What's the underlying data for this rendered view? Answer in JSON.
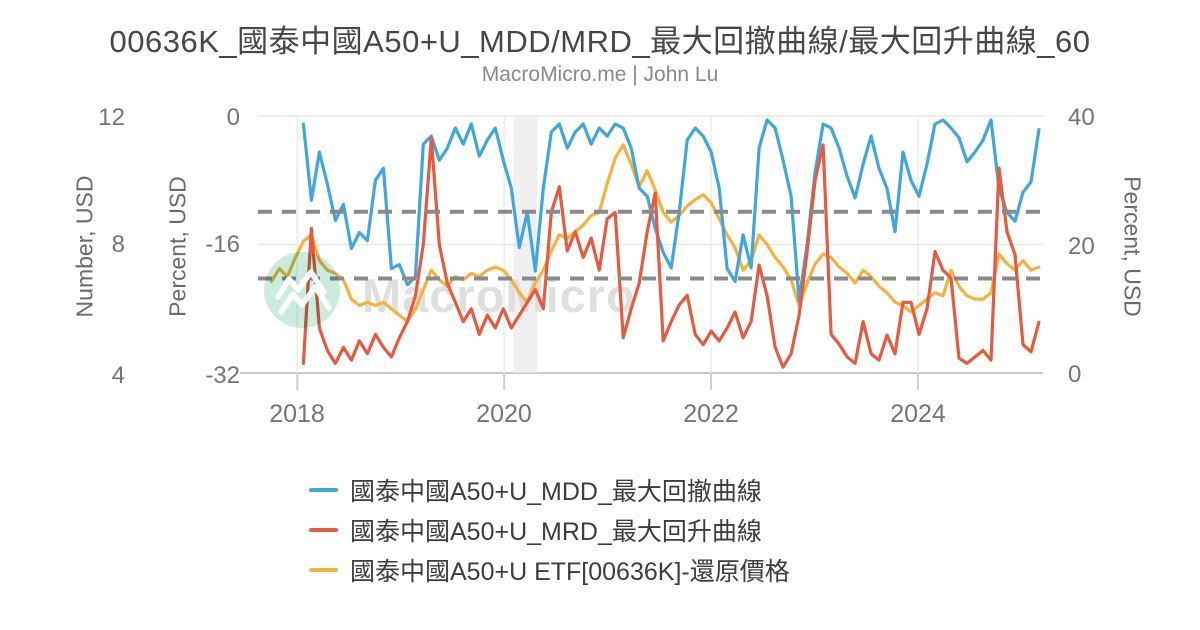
{
  "title": "00636K_國泰中國A50+U_MDD/MRD_最大回撤曲線/最大回升曲線_60",
  "subtitle": "MacroMicro.me | John Lu",
  "watermark": {
    "text": "MacroMicro",
    "logo": "macromicro-mountain-logo",
    "circle_color": "#c9ecdf",
    "text_color": "#d8d8d8"
  },
  "colors": {
    "blue": "#3fa7da",
    "red": "#e65a40",
    "yellow": "#f3b33e",
    "grid": "#e8e8e8",
    "axis_line": "#c9c9c9",
    "dash": "#8a8a8a",
    "band": "#ebebeb"
  },
  "axes": {
    "left_outer": {
      "label": "Number, USD",
      "ticks": [
        12,
        8,
        4
      ],
      "range": [
        4,
        12
      ]
    },
    "left_inner": {
      "label": "Percent, USD",
      "ticks": [
        0,
        -16,
        -32
      ],
      "range": [
        -32,
        0
      ]
    },
    "right": {
      "label": "Percent, USD",
      "ticks": [
        40,
        20,
        0
      ],
      "range": [
        0,
        40
      ]
    },
    "x": {
      "ticks": [
        2018,
        2020,
        2022,
        2024
      ],
      "range": [
        2017.62,
        2025.21
      ]
    }
  },
  "legend": [
    {
      "label": "國泰中國A50+U_MDD_最大回撤曲線",
      "color": "#3fa7da"
    },
    {
      "label": "國泰中國A50+U_MRD_最大回升曲線",
      "color": "#e65a40"
    },
    {
      "label": "國泰中國A50+U ETF[00636K]-還原價格",
      "color": "#f3b33e"
    }
  ],
  "chart_data": {
    "type": "line",
    "x_start": 2017.75,
    "x_step": 0.0773,
    "grid": true,
    "legend_position": "bottom",
    "recession_band": {
      "x_start": 2020.09,
      "x_end": 2020.32
    },
    "dashed_lines": [
      {
        "axis": "right",
        "value": 25.1
      },
      {
        "axis": "right",
        "value": 14.7
      }
    ],
    "series": [
      {
        "name": "國泰中國A50+U ETF[00636K]-還原價格",
        "axis": "left_outer",
        "color": "#f3b33e",
        "values": [
          6.85,
          7.25,
          7.0,
          7.6,
          8.1,
          8.3,
          7.5,
          7.2,
          7.1,
          6.9,
          6.3,
          6.1,
          6.2,
          6.1,
          6.2,
          6.0,
          5.8,
          5.6,
          6.0,
          6.6,
          7.2,
          6.9,
          6.7,
          7.0,
          6.9,
          7.1,
          7.0,
          7.2,
          7.3,
          7.2,
          6.9,
          6.5,
          6.2,
          6.8,
          7.2,
          7.8,
          8.3,
          8.2,
          8.4,
          8.6,
          8.9,
          9.0,
          9.9,
          10.7,
          11.1,
          10.5,
          9.8,
          10.3,
          9.7,
          9.0,
          8.7,
          8.9,
          9.2,
          9.4,
          9.55,
          9.3,
          8.8,
          8.3,
          7.9,
          7.2,
          7.5,
          8.3,
          8.0,
          7.6,
          7.3,
          6.9,
          6.1,
          6.8,
          7.4,
          7.7,
          7.6,
          7.3,
          7.1,
          6.8,
          7.2,
          7.0,
          6.7,
          6.5,
          6.2,
          6.1,
          5.9,
          6.1,
          6.3,
          6.5,
          6.4,
          7.2,
          6.7,
          6.4,
          6.3,
          6.3,
          6.5,
          7.7,
          7.4,
          7.2,
          7.5,
          7.2,
          7.3
        ]
      },
      {
        "name": "國泰中國A50+U_MDD_最大回撤曲線",
        "axis": "left_inner",
        "color": "#3fa7da",
        "values": [
          null,
          null,
          null,
          null,
          -1.0,
          -10.5,
          -4.5,
          -8.5,
          -13,
          -11,
          -16.5,
          -14.5,
          -15.5,
          -8,
          -6.5,
          -19,
          -18.5,
          -21,
          -20,
          -3.5,
          -2.5,
          -5.5,
          -4,
          -1.5,
          -3.5,
          -1,
          -5,
          -3,
          -1.5,
          -5.5,
          -9,
          -16.4,
          -12,
          -19.3,
          -9,
          -2,
          -1,
          -4,
          -2,
          -1,
          -3.5,
          -1.5,
          -2.5,
          -1,
          -1.5,
          -4,
          -9,
          -10,
          -14,
          -17,
          -18.9,
          -12,
          -3,
          -1.5,
          -2.5,
          -4.5,
          -9,
          -19,
          -20.6,
          -14.8,
          -18.9,
          -4,
          -0.5,
          -1.5,
          -5.5,
          -10,
          -23,
          -16,
          -7,
          -1,
          -1.5,
          -4,
          -7.5,
          -10.2,
          -6,
          -2.5,
          -6.5,
          -9,
          -14.4,
          -4.5,
          -8,
          -10,
          -6,
          -1,
          -0.5,
          -1.5,
          -2.7,
          -5.7,
          -4.5,
          -3,
          -0.5,
          -9,
          -12,
          -13.1,
          -9.5,
          -8.2,
          -1.7
        ]
      },
      {
        "name": "國泰中國A50+U_MRD_最大回升曲線",
        "axis": "right",
        "color": "#e65a40",
        "values": [
          null,
          null,
          null,
          null,
          1.5,
          22.5,
          7,
          3.5,
          1.5,
          4,
          2,
          5,
          3,
          6,
          4,
          2.5,
          5.5,
          8,
          12,
          20,
          36.5,
          20,
          14,
          11,
          8,
          10,
          6,
          9,
          7,
          10,
          7,
          9,
          11,
          13,
          10,
          25,
          29,
          19,
          22,
          18,
          21,
          16,
          24,
          25,
          5.5,
          10,
          14,
          22,
          28,
          5,
          8,
          10.6,
          12.1,
          6,
          4.4,
          6.5,
          5,
          7,
          9.5,
          5.5,
          8,
          16.8,
          12,
          4,
          0.9,
          3,
          9,
          18.9,
          30,
          35.5,
          6,
          4.5,
          2.5,
          1.5,
          8,
          3,
          2,
          5.9,
          3,
          11,
          11,
          6,
          10,
          18.9,
          16,
          14.8,
          2.3,
          1.5,
          2.5,
          3.5,
          2,
          31.9,
          22,
          18.4,
          4.4,
          3.3,
          7.9
        ]
      }
    ]
  }
}
